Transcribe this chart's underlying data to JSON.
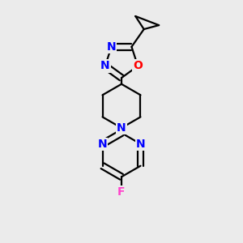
{
  "bg_color": "#ebebeb",
  "bond_color": "#000000",
  "N_color": "#0000ff",
  "O_color": "#ff0000",
  "F_color": "#ff44cc",
  "line_width": 1.6,
  "font_size": 10,
  "fig_size": [
    3.0,
    3.0
  ],
  "dpi": 100,
  "xlim": [
    0,
    10
  ],
  "ylim": [
    0,
    10
  ]
}
